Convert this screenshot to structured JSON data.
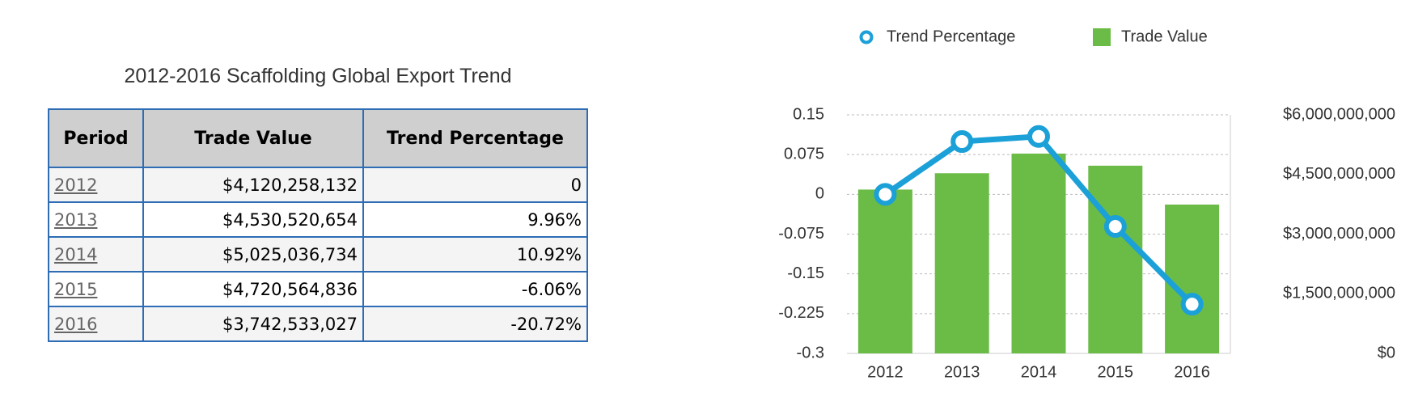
{
  "table": {
    "title": "2012-2016 Scaffolding Global Export Trend",
    "columns": [
      "Period",
      "Trade Value",
      "Trend Percentage"
    ],
    "rows": [
      [
        "2012",
        "$4,120,258,132",
        "0"
      ],
      [
        "2013",
        "$4,530,520,654",
        "9.96%"
      ],
      [
        "2014",
        "$5,025,036,734",
        "10.92%"
      ],
      [
        "2015",
        "$4,720,564,836",
        "-6.06%"
      ],
      [
        "2016",
        "$3,742,533,027",
        "-20.72%"
      ]
    ]
  },
  "chart_data": {
    "type": "combo",
    "categories": [
      "2012",
      "2013",
      "2014",
      "2015",
      "2016"
    ],
    "series": [
      {
        "name": "Trend Percentage",
        "type": "line",
        "color": "#1ba0d8",
        "values": [
          0,
          0.0996,
          0.1092,
          -0.0606,
          -0.2072
        ]
      },
      {
        "name": "Trade Value",
        "type": "bar",
        "color": "#6bbc46",
        "axis": "y2",
        "values": [
          4120258132,
          4530520654,
          5025036734,
          4720564836,
          3742533027
        ]
      }
    ],
    "ylim": [
      -0.3,
      0.15
    ],
    "yticks": [
      -0.3,
      -0.225,
      -0.15,
      -0.075,
      0,
      0.075,
      0.15
    ],
    "y2lim": [
      0,
      6000000000
    ],
    "y2ticks": [
      {
        "value": 0,
        "label": "$0"
      },
      {
        "value": 1500000000,
        "label": "$1,500,000,000"
      },
      {
        "value": 3000000000,
        "label": "$3,000,000,000"
      },
      {
        "value": 4500000000,
        "label": "$4,500,000,000"
      },
      {
        "value": 6000000000,
        "label": "$6,000,000,000"
      }
    ],
    "grid": true,
    "legend": "top"
  }
}
